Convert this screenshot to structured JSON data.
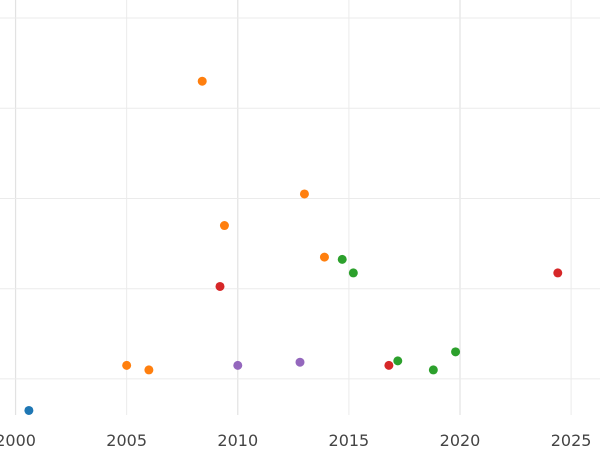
{
  "chart_data": {
    "type": "scatter",
    "title": "",
    "xlabel": "",
    "ylabel": "",
    "xlim": [
      1999.3,
      2026.3
    ],
    "ylim": [
      0.12,
      1.04
    ],
    "x_ticks": [
      2000,
      2005,
      2010,
      2015,
      2020,
      2025
    ],
    "x_tick_labels": [
      "2000",
      "2005",
      "2010",
      "2015",
      "2020",
      "2025"
    ],
    "y_gridlines": [
      0.2,
      0.4,
      0.6,
      0.8,
      1.0
    ],
    "grid": true,
    "legend": false,
    "point_colors": {
      "blue": "#1f77b4",
      "orange": "#ff7f0e",
      "green": "#2ca02c",
      "red": "#d62728",
      "purple": "#9467bd"
    },
    "points": [
      {
        "x": 2000.6,
        "y": 0.13,
        "color": "blue"
      },
      {
        "x": 2005.0,
        "y": 0.23,
        "color": "orange"
      },
      {
        "x": 2006.0,
        "y": 0.22,
        "color": "orange"
      },
      {
        "x": 2008.4,
        "y": 0.86,
        "color": "orange"
      },
      {
        "x": 2009.4,
        "y": 0.54,
        "color": "orange"
      },
      {
        "x": 2013.0,
        "y": 0.61,
        "color": "orange"
      },
      {
        "x": 2013.9,
        "y": 0.47,
        "color": "orange"
      },
      {
        "x": 2014.7,
        "y": 0.465,
        "color": "green"
      },
      {
        "x": 2015.2,
        "y": 0.435,
        "color": "green"
      },
      {
        "x": 2017.2,
        "y": 0.24,
        "color": "green"
      },
      {
        "x": 2018.8,
        "y": 0.22,
        "color": "green"
      },
      {
        "x": 2019.8,
        "y": 0.26,
        "color": "green"
      },
      {
        "x": 2009.2,
        "y": 0.405,
        "color": "red"
      },
      {
        "x": 2016.8,
        "y": 0.23,
        "color": "red"
      },
      {
        "x": 2024.4,
        "y": 0.435,
        "color": "red"
      },
      {
        "x": 2010.0,
        "y": 0.23,
        "color": "purple"
      },
      {
        "x": 2012.8,
        "y": 0.237,
        "color": "purple"
      }
    ]
  }
}
